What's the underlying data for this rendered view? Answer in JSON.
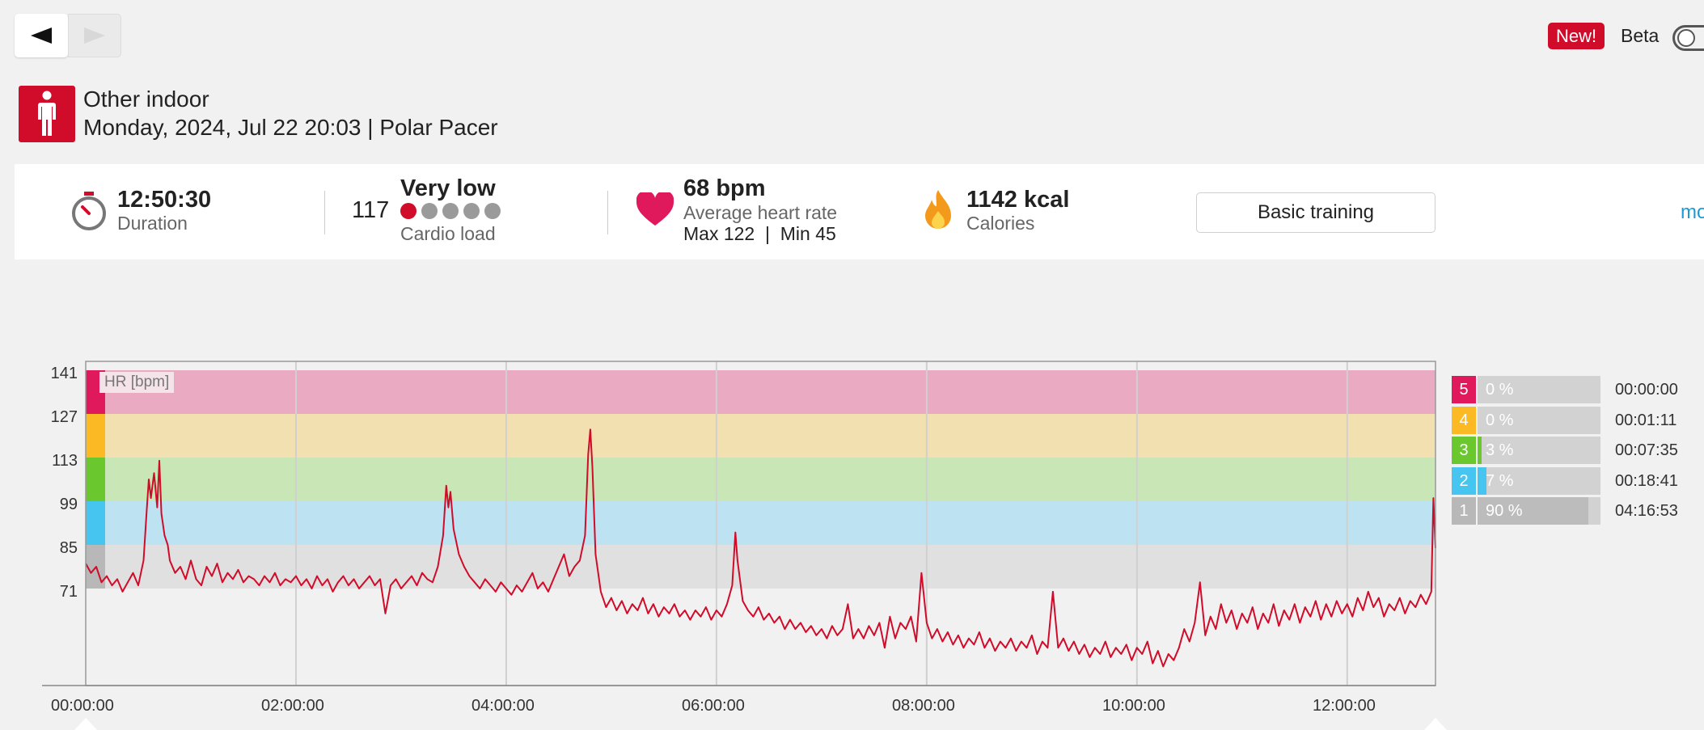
{
  "nav": {
    "prev_icon": "triangle-left-icon",
    "next_icon": "triangle-right-icon"
  },
  "header": {
    "new_badge": "New!",
    "beta_label": "Beta",
    "beta_enabled": false
  },
  "sport": {
    "icon": "person-standing-icon",
    "name": "Other indoor",
    "subtitle": "Monday, 2024, Jul 22 20:03 | Polar Pacer"
  },
  "summary": {
    "duration": {
      "value": "12:50:30",
      "label": "Duration"
    },
    "cardio": {
      "value": "117",
      "level": "Very low",
      "label": "Cardio load",
      "dots_active": 1,
      "dots_total": 5
    },
    "heart": {
      "value": "68 bpm",
      "label": "Average heart rate",
      "max_min": "Max 122  |  Min 45"
    },
    "calories": {
      "value": "1142 kcal",
      "label": "Calories"
    },
    "benefit_button": "Basic training",
    "more_link": "more"
  },
  "chart_data": {
    "type": "line",
    "ylabel": "HR [bpm]",
    "y_ticks": [
      "141",
      "127",
      "113",
      "99",
      "85",
      "71"
    ],
    "x_ticks": [
      "00:00:00",
      "02:00:00",
      "04:00:00",
      "06:00:00",
      "08:00:00",
      "10:00:00",
      "12:00:00"
    ],
    "ylim": [
      36,
      144
    ],
    "xlim_hours": [
      0,
      12.84
    ],
    "zone_bands": [
      {
        "zone": 5,
        "from": 127,
        "to": 141,
        "color": "#e9aac2"
      },
      {
        "zone": 4,
        "from": 113,
        "to": 127,
        "color": "#f3e0b0"
      },
      {
        "zone": 3,
        "from": 99,
        "to": 113,
        "color": "#c8e6b6"
      },
      {
        "zone": 2,
        "from": 85,
        "to": 99,
        "color": "#bde2f1"
      },
      {
        "zone": 1,
        "from": 71,
        "to": 85,
        "color": "#e0e0e0"
      }
    ],
    "series": [
      {
        "color": "#d10b2a",
        "points": [
          [
            0.0,
            79
          ],
          [
            0.05,
            76
          ],
          [
            0.1,
            78
          ],
          [
            0.15,
            73
          ],
          [
            0.2,
            75
          ],
          [
            0.25,
            72
          ],
          [
            0.3,
            74
          ],
          [
            0.35,
            70
          ],
          [
            0.4,
            73
          ],
          [
            0.45,
            76
          ],
          [
            0.5,
            72
          ],
          [
            0.55,
            80
          ],
          [
            0.58,
            96
          ],
          [
            0.6,
            106
          ],
          [
            0.62,
            100
          ],
          [
            0.65,
            108
          ],
          [
            0.68,
            97
          ],
          [
            0.7,
            112
          ],
          [
            0.72,
            95
          ],
          [
            0.75,
            88
          ],
          [
            0.78,
            85
          ],
          [
            0.8,
            80
          ],
          [
            0.85,
            76
          ],
          [
            0.9,
            78
          ],
          [
            0.95,
            74
          ],
          [
            1.0,
            80
          ],
          [
            1.05,
            74
          ],
          [
            1.1,
            72
          ],
          [
            1.15,
            78
          ],
          [
            1.2,
            75
          ],
          [
            1.25,
            79
          ],
          [
            1.3,
            73
          ],
          [
            1.35,
            76
          ],
          [
            1.4,
            74
          ],
          [
            1.45,
            77
          ],
          [
            1.5,
            73
          ],
          [
            1.55,
            75
          ],
          [
            1.6,
            74
          ],
          [
            1.65,
            72
          ],
          [
            1.7,
            75
          ],
          [
            1.75,
            73
          ],
          [
            1.8,
            76
          ],
          [
            1.85,
            72
          ],
          [
            1.9,
            74
          ],
          [
            1.95,
            73
          ],
          [
            2.0,
            75
          ],
          [
            2.05,
            72
          ],
          [
            2.1,
            74
          ],
          [
            2.15,
            71
          ],
          [
            2.2,
            75
          ],
          [
            2.25,
            72
          ],
          [
            2.3,
            74
          ],
          [
            2.35,
            70
          ],
          [
            2.4,
            73
          ],
          [
            2.45,
            75
          ],
          [
            2.5,
            72
          ],
          [
            2.55,
            74
          ],
          [
            2.6,
            71
          ],
          [
            2.65,
            73
          ],
          [
            2.7,
            75
          ],
          [
            2.75,
            72
          ],
          [
            2.8,
            74
          ],
          [
            2.85,
            63
          ],
          [
            2.9,
            72
          ],
          [
            2.95,
            74
          ],
          [
            3.0,
            71
          ],
          [
            3.05,
            73
          ],
          [
            3.1,
            75
          ],
          [
            3.15,
            72
          ],
          [
            3.2,
            76
          ],
          [
            3.25,
            74
          ],
          [
            3.3,
            73
          ],
          [
            3.35,
            78
          ],
          [
            3.4,
            88
          ],
          [
            3.43,
            104
          ],
          [
            3.45,
            97
          ],
          [
            3.47,
            102
          ],
          [
            3.5,
            90
          ],
          [
            3.55,
            82
          ],
          [
            3.6,
            78
          ],
          [
            3.65,
            75
          ],
          [
            3.7,
            73
          ],
          [
            3.75,
            71
          ],
          [
            3.8,
            74
          ],
          [
            3.85,
            72
          ],
          [
            3.9,
            70
          ],
          [
            3.95,
            73
          ],
          [
            4.0,
            71
          ],
          [
            4.05,
            69
          ],
          [
            4.1,
            72
          ],
          [
            4.15,
            70
          ],
          [
            4.2,
            73
          ],
          [
            4.25,
            76
          ],
          [
            4.3,
            71
          ],
          [
            4.35,
            73
          ],
          [
            4.4,
            70
          ],
          [
            4.45,
            74
          ],
          [
            4.5,
            78
          ],
          [
            4.55,
            82
          ],
          [
            4.6,
            75
          ],
          [
            4.65,
            78
          ],
          [
            4.7,
            80
          ],
          [
            4.75,
            88
          ],
          [
            4.78,
            114
          ],
          [
            4.8,
            122
          ],
          [
            4.82,
            110
          ],
          [
            4.85,
            82
          ],
          [
            4.9,
            70
          ],
          [
            4.95,
            65
          ],
          [
            5.0,
            68
          ],
          [
            5.05,
            64
          ],
          [
            5.1,
            67
          ],
          [
            5.15,
            63
          ],
          [
            5.2,
            66
          ],
          [
            5.25,
            64
          ],
          [
            5.3,
            68
          ],
          [
            5.35,
            63
          ],
          [
            5.4,
            66
          ],
          [
            5.45,
            62
          ],
          [
            5.5,
            65
          ],
          [
            5.55,
            63
          ],
          [
            5.6,
            66
          ],
          [
            5.65,
            62
          ],
          [
            5.7,
            64
          ],
          [
            5.75,
            61
          ],
          [
            5.8,
            64
          ],
          [
            5.85,
            62
          ],
          [
            5.9,
            65
          ],
          [
            5.95,
            61
          ],
          [
            6.0,
            64
          ],
          [
            6.05,
            62
          ],
          [
            6.1,
            66
          ],
          [
            6.15,
            72
          ],
          [
            6.18,
            89
          ],
          [
            6.2,
            80
          ],
          [
            6.25,
            67
          ],
          [
            6.3,
            64
          ],
          [
            6.35,
            62
          ],
          [
            6.4,
            65
          ],
          [
            6.45,
            61
          ],
          [
            6.5,
            63
          ],
          [
            6.55,
            60
          ],
          [
            6.6,
            62
          ],
          [
            6.65,
            58
          ],
          [
            6.7,
            61
          ],
          [
            6.75,
            58
          ],
          [
            6.8,
            60
          ],
          [
            6.85,
            57
          ],
          [
            6.9,
            59
          ],
          [
            6.95,
            56
          ],
          [
            7.0,
            58
          ],
          [
            7.05,
            55
          ],
          [
            7.1,
            59
          ],
          [
            7.15,
            56
          ],
          [
            7.2,
            58
          ],
          [
            7.25,
            66
          ],
          [
            7.3,
            55
          ],
          [
            7.35,
            58
          ],
          [
            7.4,
            55
          ],
          [
            7.45,
            59
          ],
          [
            7.5,
            56
          ],
          [
            7.55,
            60
          ],
          [
            7.6,
            52
          ],
          [
            7.65,
            62
          ],
          [
            7.7,
            55
          ],
          [
            7.75,
            60
          ],
          [
            7.8,
            58
          ],
          [
            7.85,
            62
          ],
          [
            7.9,
            54
          ],
          [
            7.95,
            76
          ],
          [
            8.0,
            60
          ],
          [
            8.05,
            55
          ],
          [
            8.1,
            58
          ],
          [
            8.15,
            54
          ],
          [
            8.2,
            57
          ],
          [
            8.25,
            53
          ],
          [
            8.3,
            56
          ],
          [
            8.35,
            52
          ],
          [
            8.4,
            55
          ],
          [
            8.45,
            53
          ],
          [
            8.5,
            57
          ],
          [
            8.55,
            52
          ],
          [
            8.6,
            55
          ],
          [
            8.65,
            51
          ],
          [
            8.7,
            54
          ],
          [
            8.75,
            52
          ],
          [
            8.8,
            55
          ],
          [
            8.85,
            51
          ],
          [
            8.9,
            54
          ],
          [
            8.95,
            52
          ],
          [
            9.0,
            56
          ],
          [
            9.05,
            50
          ],
          [
            9.1,
            54
          ],
          [
            9.15,
            52
          ],
          [
            9.2,
            70
          ],
          [
            9.25,
            52
          ],
          [
            9.3,
            55
          ],
          [
            9.35,
            51
          ],
          [
            9.4,
            54
          ],
          [
            9.45,
            50
          ],
          [
            9.5,
            53
          ],
          [
            9.55,
            49
          ],
          [
            9.6,
            52
          ],
          [
            9.65,
            50
          ],
          [
            9.7,
            54
          ],
          [
            9.75,
            49
          ],
          [
            9.8,
            52
          ],
          [
            9.85,
            50
          ],
          [
            9.9,
            53
          ],
          [
            9.95,
            48
          ],
          [
            10.0,
            52
          ],
          [
            10.05,
            50
          ],
          [
            10.1,
            54
          ],
          [
            10.15,
            47
          ],
          [
            10.2,
            51
          ],
          [
            10.25,
            46
          ],
          [
            10.3,
            50
          ],
          [
            10.35,
            48
          ],
          [
            10.4,
            52
          ],
          [
            10.45,
            58
          ],
          [
            10.5,
            54
          ],
          [
            10.55,
            60
          ],
          [
            10.6,
            73
          ],
          [
            10.65,
            56
          ],
          [
            10.7,
            62
          ],
          [
            10.75,
            58
          ],
          [
            10.8,
            66
          ],
          [
            10.85,
            60
          ],
          [
            10.9,
            64
          ],
          [
            10.95,
            58
          ],
          [
            11.0,
            63
          ],
          [
            11.05,
            60
          ],
          [
            11.1,
            65
          ],
          [
            11.15,
            58
          ],
          [
            11.2,
            63
          ],
          [
            11.25,
            60
          ],
          [
            11.3,
            66
          ],
          [
            11.35,
            59
          ],
          [
            11.4,
            64
          ],
          [
            11.45,
            61
          ],
          [
            11.5,
            66
          ],
          [
            11.55,
            60
          ],
          [
            11.6,
            65
          ],
          [
            11.65,
            62
          ],
          [
            11.7,
            67
          ],
          [
            11.75,
            61
          ],
          [
            11.8,
            66
          ],
          [
            11.85,
            62
          ],
          [
            11.9,
            67
          ],
          [
            11.95,
            63
          ],
          [
            12.0,
            66
          ],
          [
            12.05,
            62
          ],
          [
            12.1,
            68
          ],
          [
            12.15,
            64
          ],
          [
            12.2,
            70
          ],
          [
            12.25,
            65
          ],
          [
            12.3,
            68
          ],
          [
            12.35,
            62
          ],
          [
            12.4,
            66
          ],
          [
            12.45,
            64
          ],
          [
            12.5,
            68
          ],
          [
            12.55,
            63
          ],
          [
            12.6,
            67
          ],
          [
            12.65,
            65
          ],
          [
            12.7,
            69
          ],
          [
            12.75,
            66
          ],
          [
            12.8,
            70
          ],
          [
            12.82,
            100
          ],
          [
            12.84,
            84
          ]
        ]
      }
    ]
  },
  "zones": [
    {
      "zone": "5",
      "percent": "0 %",
      "time": "00:00:00",
      "color": "#e0185c",
      "fraction": 0.0
    },
    {
      "zone": "4",
      "percent": "0 %",
      "time": "00:01:11",
      "color": "#fbb924",
      "fraction": 0.0
    },
    {
      "zone": "3",
      "percent": "3 %",
      "time": "00:07:35",
      "color": "#6ac72e",
      "fraction": 0.03
    },
    {
      "zone": "2",
      "percent": "7 %",
      "time": "00:18:41",
      "color": "#45c5ef",
      "fraction": 0.07
    },
    {
      "zone": "1",
      "percent": "90 %",
      "time": "04:16:53",
      "color": "#b8b8b8",
      "fraction": 0.9
    }
  ]
}
